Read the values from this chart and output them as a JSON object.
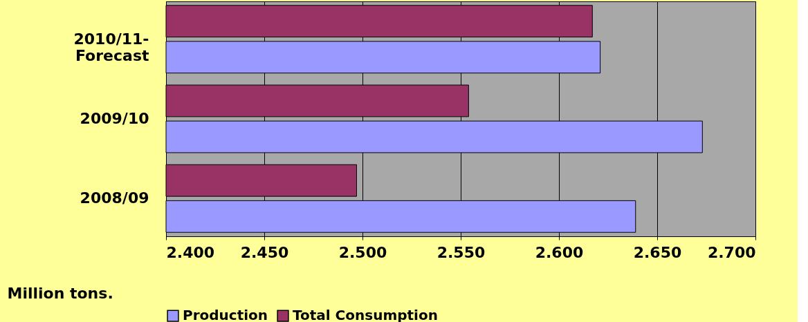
{
  "chart_data": {
    "type": "bar",
    "orientation": "horizontal",
    "categories": [
      "2010/11-\nForecast",
      "2009/10",
      "2008/09"
    ],
    "series": [
      {
        "name": "Production",
        "color": "#9999ff",
        "values": [
          2.621,
          2.673,
          2.639
        ]
      },
      {
        "name": "Total Consumption",
        "color": "#993366",
        "values": [
          2.617,
          2.554,
          2.497
        ]
      }
    ],
    "xlabel": "Million tons.",
    "xlim": [
      2.4,
      2.7
    ],
    "xticks": [
      {
        "value": 2.4,
        "label": "2.400"
      },
      {
        "value": 2.45,
        "label": "2.450"
      },
      {
        "value": 2.5,
        "label": "2.500"
      },
      {
        "value": 2.55,
        "label": "2.550"
      },
      {
        "value": 2.6,
        "label": "2.600"
      },
      {
        "value": 2.65,
        "label": "2.650"
      },
      {
        "value": 2.7,
        "label": "2.700"
      }
    ],
    "grid": "x",
    "legend": "bottom"
  }
}
